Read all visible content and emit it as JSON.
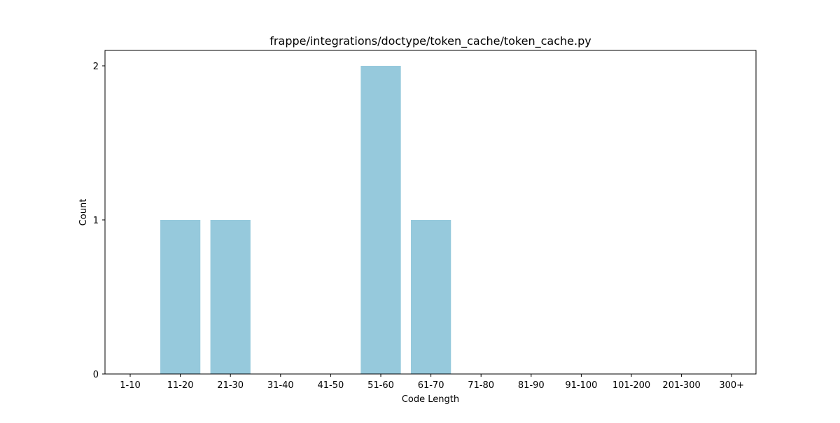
{
  "chart_data": {
    "type": "bar",
    "title": "frappe/integrations/doctype/token_cache/token_cache.py",
    "xlabel": "Code Length",
    "ylabel": "Count",
    "categories": [
      "1-10",
      "11-20",
      "21-30",
      "31-40",
      "41-50",
      "51-60",
      "61-70",
      "71-80",
      "81-90",
      "91-100",
      "101-200",
      "201-300",
      "300+"
    ],
    "values": [
      0,
      1,
      1,
      0,
      0,
      2,
      1,
      0,
      0,
      0,
      0,
      0,
      0
    ],
    "ylim": [
      0,
      2.1
    ],
    "yticks": [
      0,
      1,
      2
    ],
    "bar_color": "#96c9dc",
    "grid": false,
    "legend": "none"
  }
}
